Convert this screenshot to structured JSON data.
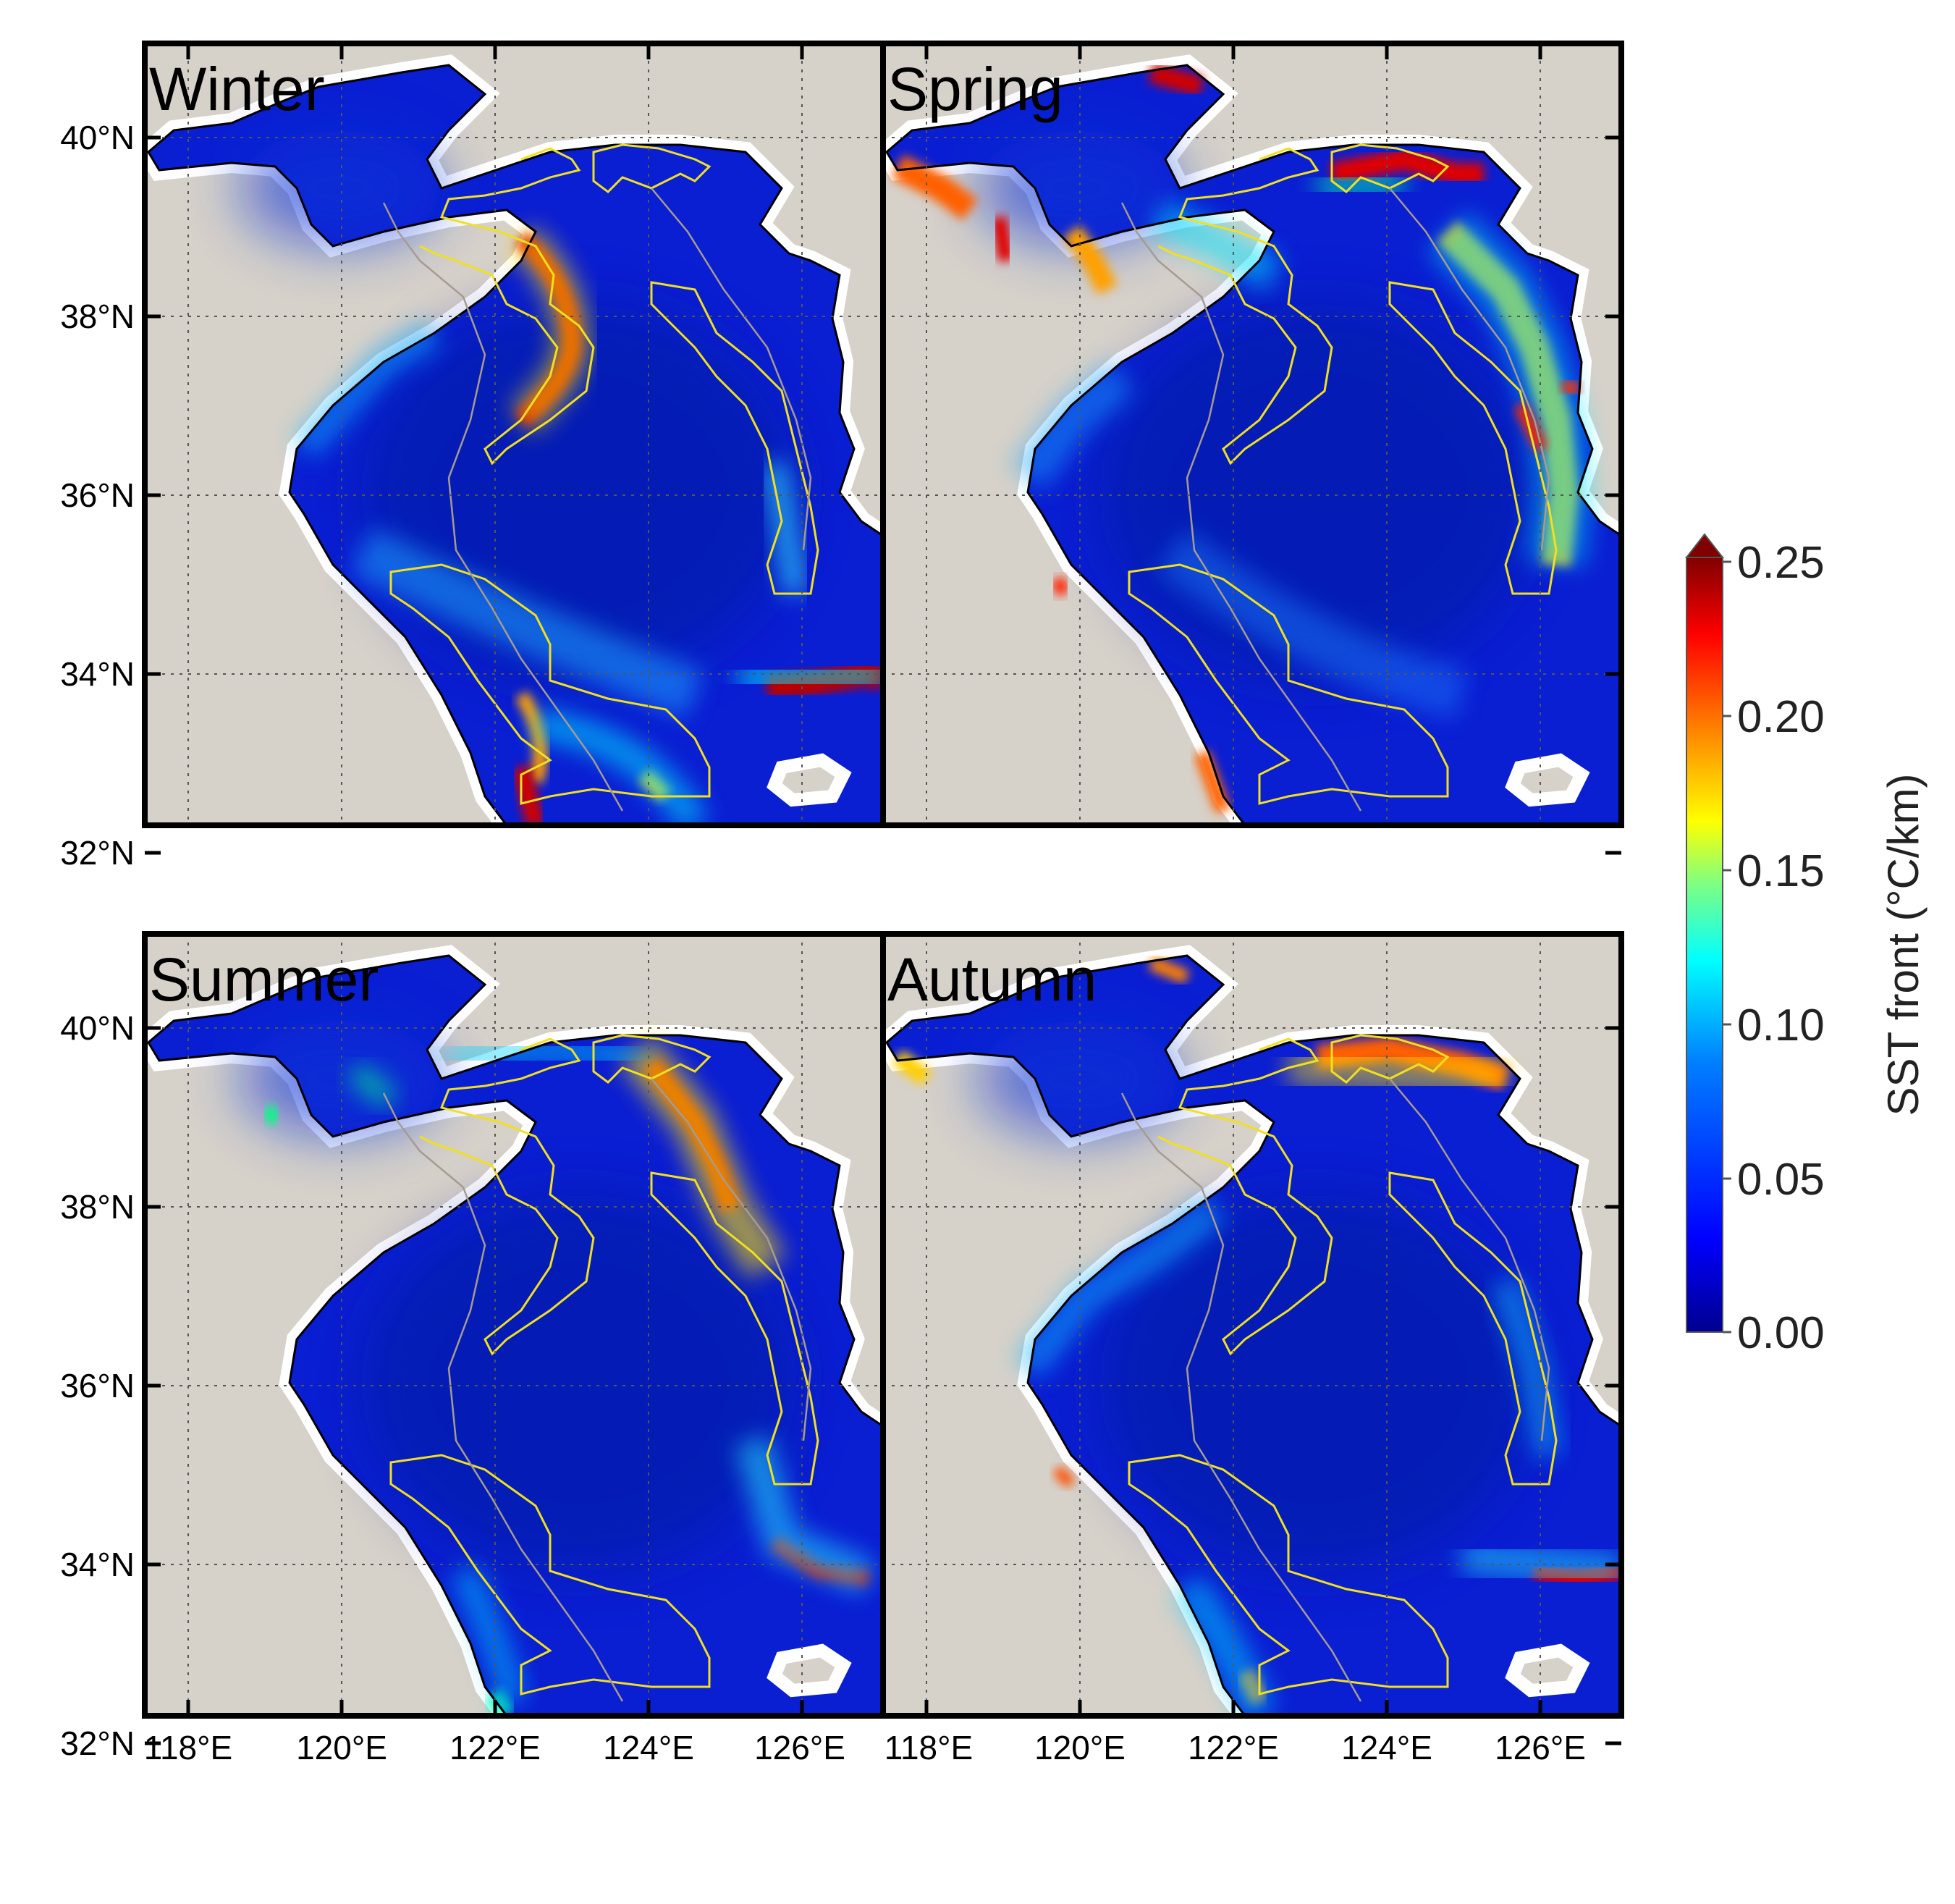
{
  "panels": [
    {
      "label": "Winter"
    },
    {
      "label": "Spring"
    },
    {
      "label": "Summer"
    },
    {
      "label": "Autumn"
    }
  ],
  "axes": {
    "lon_ticks": [
      "118°E",
      "120°E",
      "122°E",
      "124°E",
      "126°E"
    ],
    "lat_ticks": [
      "40°N",
      "38°N",
      "36°N",
      "34°N",
      "32°N"
    ],
    "lon_range": [
      117.6,
      127.0
    ],
    "lat_range": [
      31.0,
      41.0
    ]
  },
  "colorbar": {
    "title": "SST front (°C/km)",
    "ticks": [
      "0.25",
      "0.20",
      "0.15",
      "0.10",
      "0.05",
      "0.00"
    ],
    "range": [
      0.0,
      0.25
    ],
    "extend": "max",
    "colors": [
      "#00008f",
      "#0000ff",
      "#0080ff",
      "#00ffff",
      "#80ff80",
      "#ffff00",
      "#ff8000",
      "#ff0000",
      "#800000"
    ]
  },
  "map_colors": {
    "land": "#d6d1c9",
    "coast": "#000000",
    "contour": "#a69b91",
    "region_outline": "#f0e020",
    "sea_base": "#0a1ed2"
  }
}
